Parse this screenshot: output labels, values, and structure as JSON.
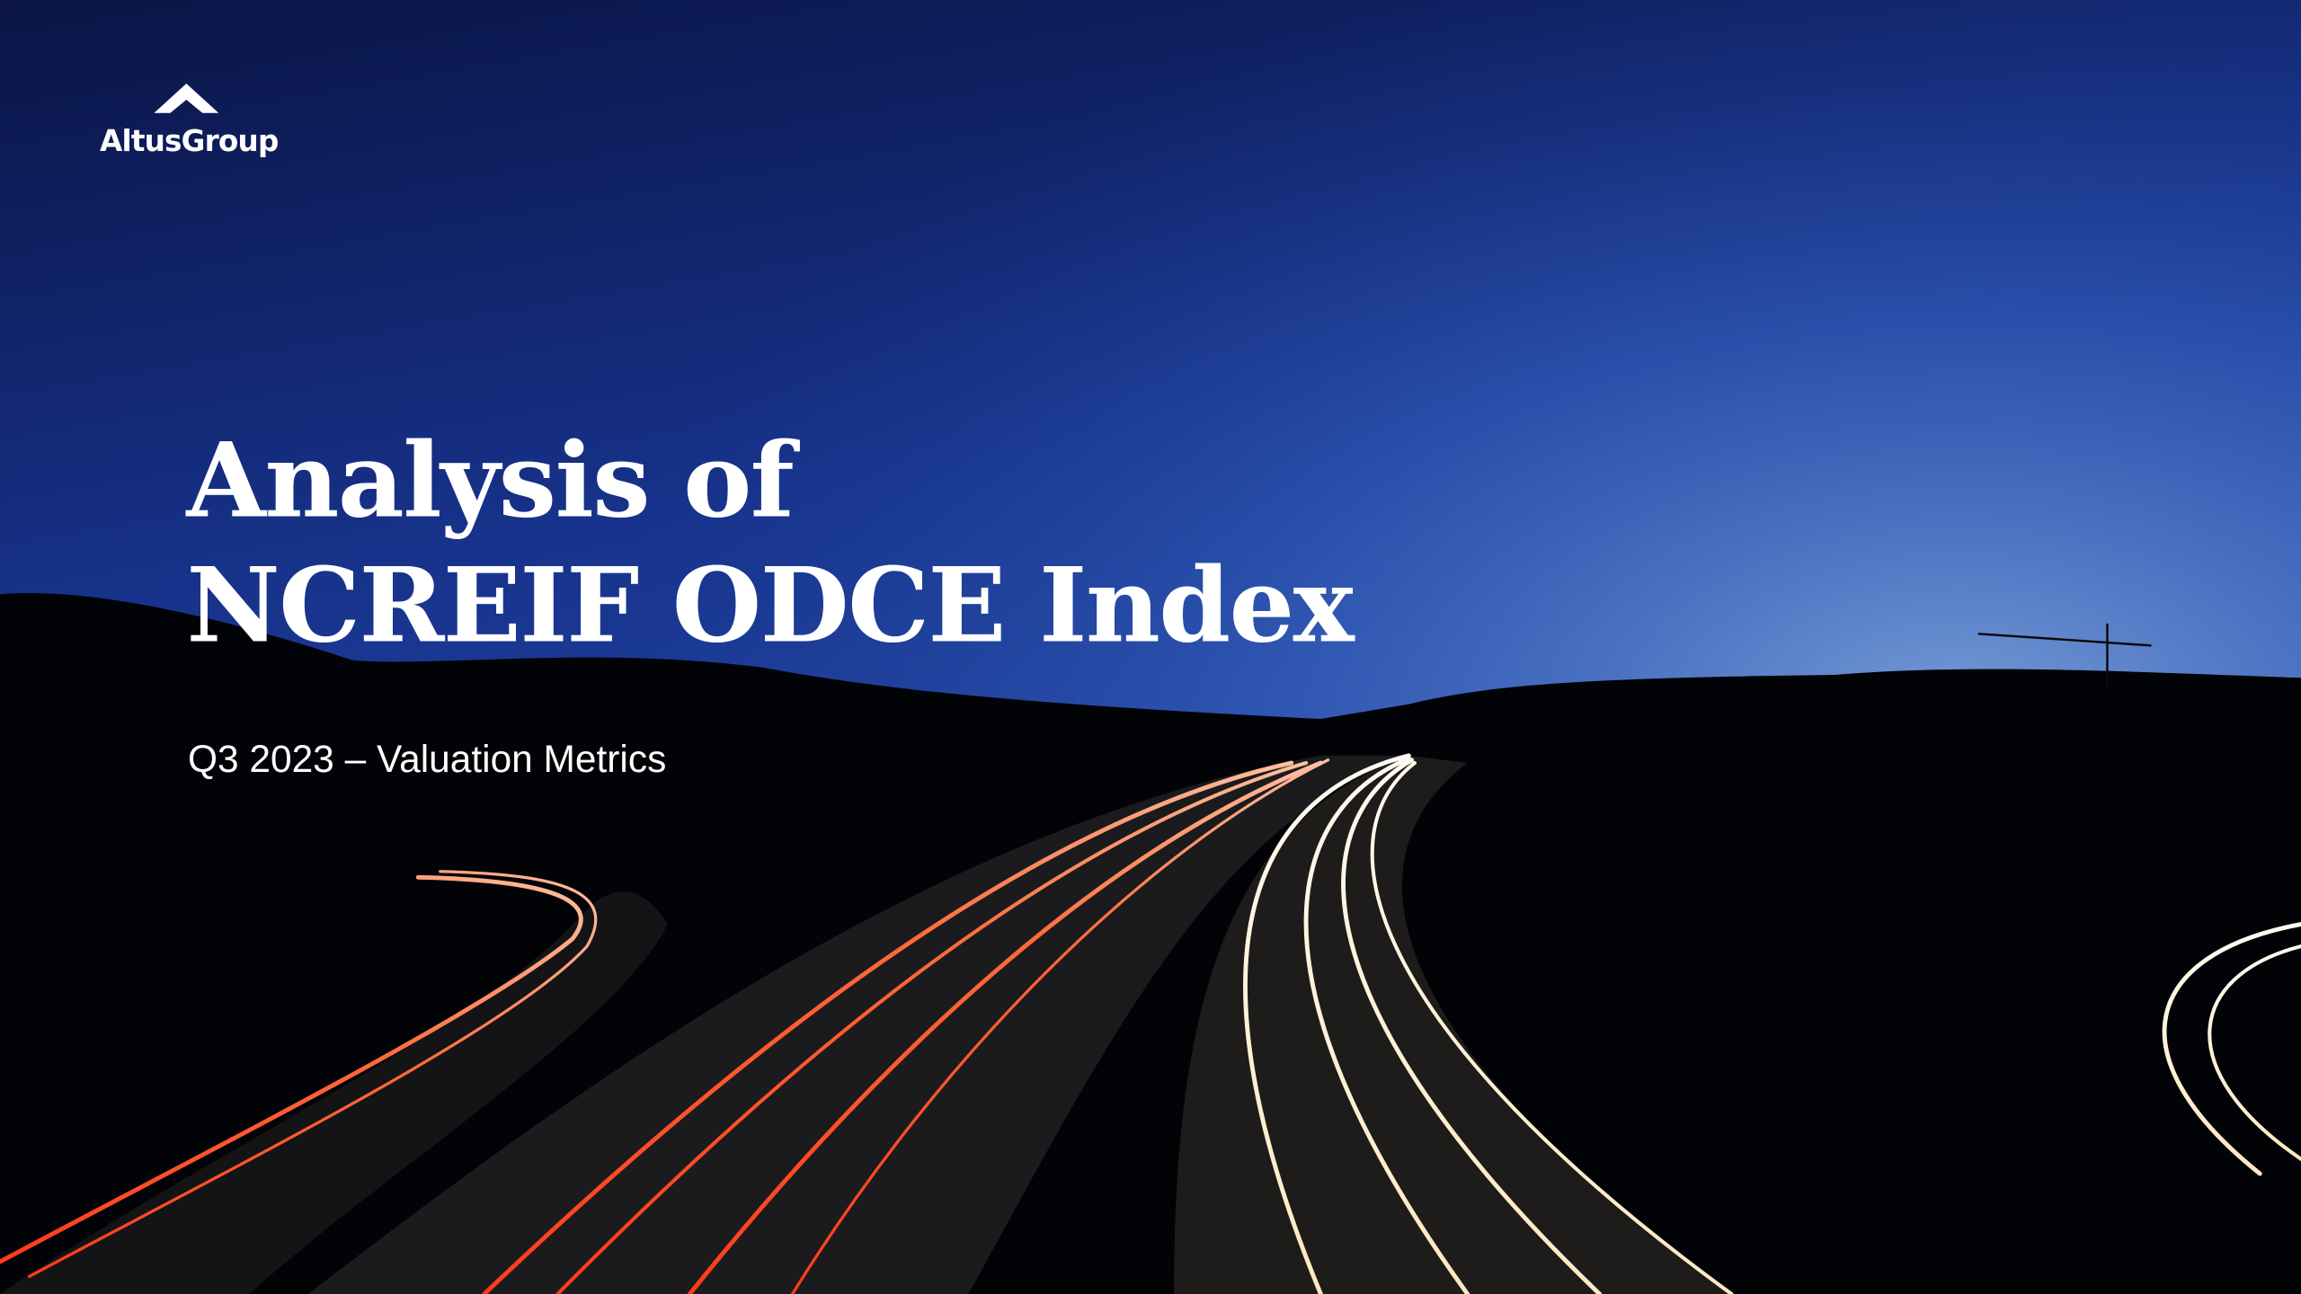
{
  "logo": {
    "text": "AltusGroup"
  },
  "title": {
    "lines": [
      "Analysis of",
      "NCREIF ODCE Index"
    ]
  },
  "subtitle": "Q3 2023 – Valuation Metrics"
}
